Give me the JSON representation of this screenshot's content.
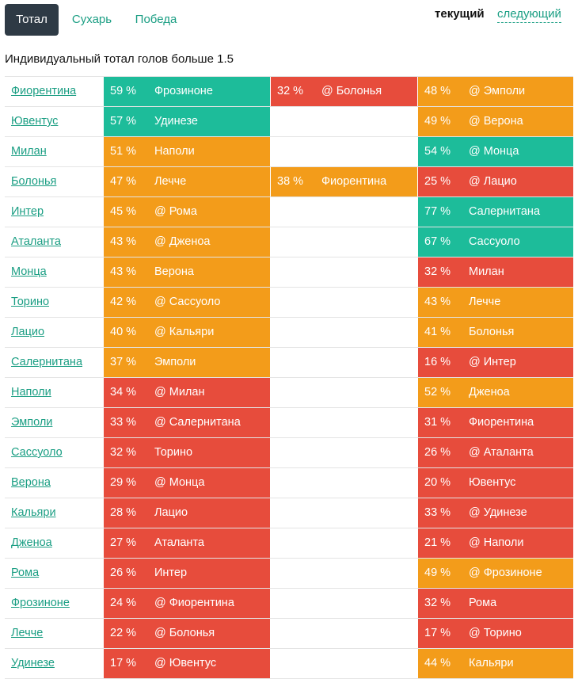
{
  "tabs": [
    {
      "label": "Тотал",
      "active": true
    },
    {
      "label": "Сухарь",
      "active": false
    },
    {
      "label": "Победа",
      "active": false
    }
  ],
  "rounds": {
    "current": "текущий",
    "next": "следующий"
  },
  "heading": "Индивидуальный тотал голов больше 1.5",
  "colors": {
    "green": "#1dbc9a",
    "orange": "#f39c1a",
    "red": "#e74c3c",
    "link": "#1a9e83",
    "tab_active_bg": "#2e3a45"
  },
  "rows": [
    {
      "team": "Фиорентина",
      "m1": {
        "pct": "59 %",
        "opp": "Фрозиноне",
        "color": "green"
      },
      "m2": {
        "pct": "32 %",
        "opp": "@ Болонья",
        "color": "red"
      },
      "m3": {
        "pct": "48 %",
        "opp": "@ Эмполи",
        "color": "orange"
      }
    },
    {
      "team": "Ювентус",
      "m1": {
        "pct": "57 %",
        "opp": "Удинезе",
        "color": "green"
      },
      "m2": null,
      "m3": {
        "pct": "49 %",
        "opp": "@ Верона",
        "color": "orange"
      }
    },
    {
      "team": "Милан",
      "m1": {
        "pct": "51 %",
        "opp": "Наполи",
        "color": "orange"
      },
      "m2": null,
      "m3": {
        "pct": "54 %",
        "opp": "@ Монца",
        "color": "green"
      }
    },
    {
      "team": "Болонья",
      "m1": {
        "pct": "47 %",
        "opp": "Лечче",
        "color": "orange"
      },
      "m2": {
        "pct": "38 %",
        "opp": "Фиорентина",
        "color": "orange"
      },
      "m3": {
        "pct": "25 %",
        "opp": "@ Лацио",
        "color": "red"
      }
    },
    {
      "team": "Интер",
      "m1": {
        "pct": "45 %",
        "opp": "@ Рома",
        "color": "orange"
      },
      "m2": null,
      "m3": {
        "pct": "77 %",
        "opp": "Салернитана",
        "color": "green"
      }
    },
    {
      "team": "Аталанта",
      "m1": {
        "pct": "43 %",
        "opp": "@ Дженоа",
        "color": "orange"
      },
      "m2": null,
      "m3": {
        "pct": "67 %",
        "opp": "Сассуоло",
        "color": "green"
      }
    },
    {
      "team": "Монца",
      "m1": {
        "pct": "43 %",
        "opp": "Верона",
        "color": "orange"
      },
      "m2": null,
      "m3": {
        "pct": "32 %",
        "opp": "Милан",
        "color": "red"
      }
    },
    {
      "team": "Торино",
      "m1": {
        "pct": "42 %",
        "opp": "@ Сассуоло",
        "color": "orange"
      },
      "m2": null,
      "m3": {
        "pct": "43 %",
        "opp": "Лечче",
        "color": "orange"
      }
    },
    {
      "team": "Лацио",
      "m1": {
        "pct": "40 %",
        "opp": "@ Кальяри",
        "color": "orange"
      },
      "m2": null,
      "m3": {
        "pct": "41 %",
        "opp": "Болонья",
        "color": "orange"
      }
    },
    {
      "team": "Салернитана",
      "m1": {
        "pct": "37 %",
        "opp": "Эмполи",
        "color": "orange"
      },
      "m2": null,
      "m3": {
        "pct": "16 %",
        "opp": "@ Интер",
        "color": "red"
      }
    },
    {
      "team": "Наполи",
      "m1": {
        "pct": "34 %",
        "opp": "@ Милан",
        "color": "red"
      },
      "m2": null,
      "m3": {
        "pct": "52 %",
        "opp": "Дженоа",
        "color": "orange"
      }
    },
    {
      "team": "Эмполи",
      "m1": {
        "pct": "33 %",
        "opp": "@ Салернитана",
        "color": "red"
      },
      "m2": null,
      "m3": {
        "pct": "31 %",
        "opp": "Фиорентина",
        "color": "red"
      }
    },
    {
      "team": "Сассуоло",
      "m1": {
        "pct": "32 %",
        "opp": "Торино",
        "color": "red"
      },
      "m2": null,
      "m3": {
        "pct": "26 %",
        "opp": "@ Аталанта",
        "color": "red"
      }
    },
    {
      "team": "Верона",
      "m1": {
        "pct": "29 %",
        "opp": "@ Монца",
        "color": "red"
      },
      "m2": null,
      "m3": {
        "pct": "20 %",
        "opp": "Ювентус",
        "color": "red"
      }
    },
    {
      "team": "Кальяри",
      "m1": {
        "pct": "28 %",
        "opp": "Лацио",
        "color": "red"
      },
      "m2": null,
      "m3": {
        "pct": "33 %",
        "opp": "@ Удинезе",
        "color": "red"
      }
    },
    {
      "team": "Дженоа",
      "m1": {
        "pct": "27 %",
        "opp": "Аталанта",
        "color": "red"
      },
      "m2": null,
      "m3": {
        "pct": "21 %",
        "opp": "@ Наполи",
        "color": "red"
      }
    },
    {
      "team": "Рома",
      "m1": {
        "pct": "26 %",
        "opp": "Интер",
        "color": "red"
      },
      "m2": null,
      "m3": {
        "pct": "49 %",
        "opp": "@ Фрозиноне",
        "color": "orange"
      }
    },
    {
      "team": "Фрозиноне",
      "m1": {
        "pct": "24 %",
        "opp": "@ Фиорентина",
        "color": "red"
      },
      "m2": null,
      "m3": {
        "pct": "32 %",
        "opp": "Рома",
        "color": "red"
      }
    },
    {
      "team": "Лечче",
      "m1": {
        "pct": "22 %",
        "opp": "@ Болонья",
        "color": "red"
      },
      "m2": null,
      "m3": {
        "pct": "17 %",
        "opp": "@ Торино",
        "color": "red"
      }
    },
    {
      "team": "Удинезе",
      "m1": {
        "pct": "17 %",
        "opp": "@ Ювентус",
        "color": "red"
      },
      "m2": null,
      "m3": {
        "pct": "44 %",
        "opp": "Кальяри",
        "color": "orange"
      }
    }
  ]
}
